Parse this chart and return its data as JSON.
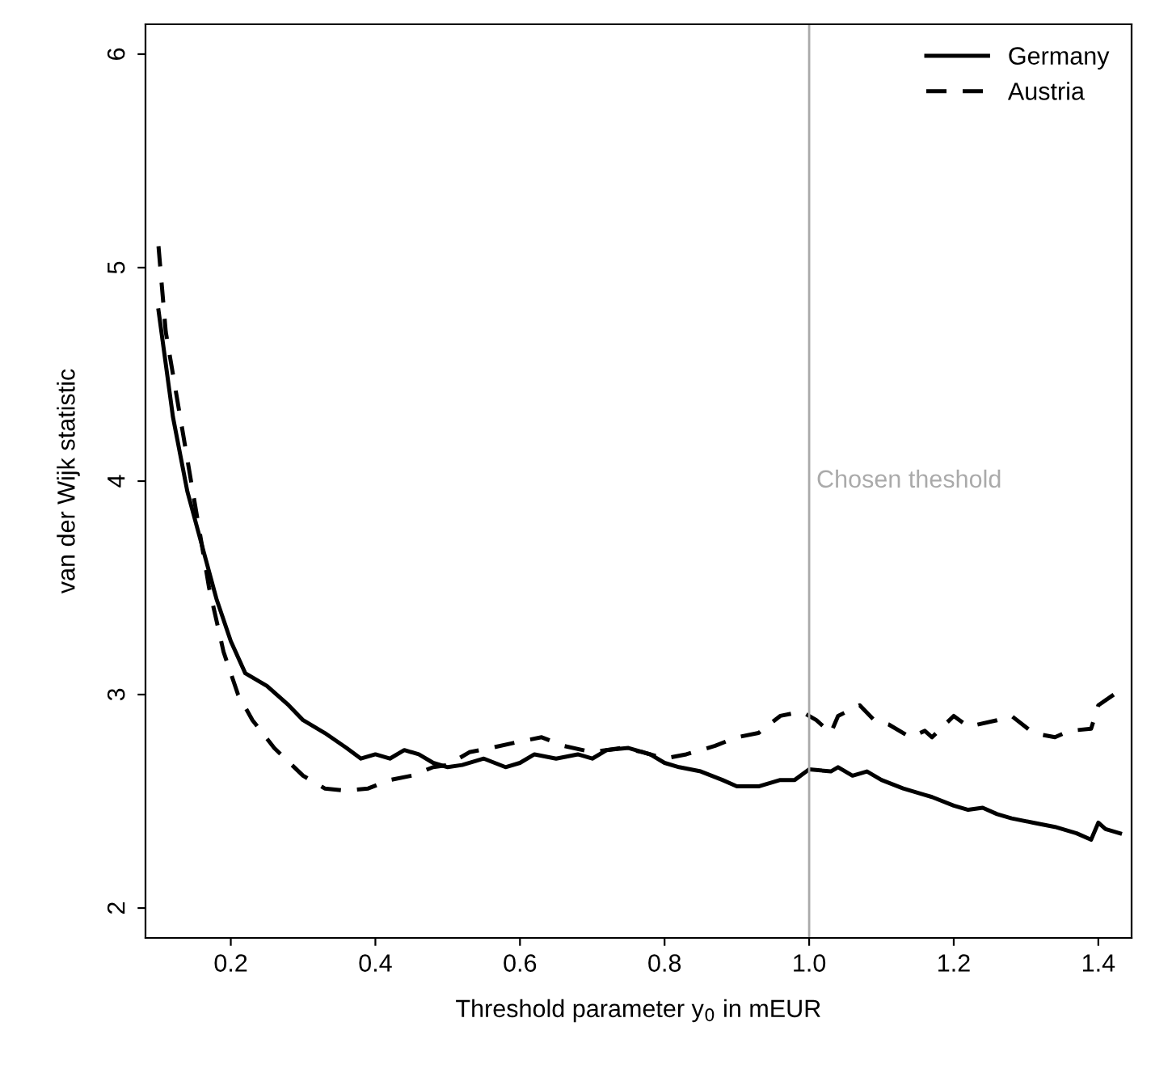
{
  "chart_data": {
    "type": "line",
    "xlabel": "Threshold parameter y$_{0}$ in mEUR",
    "ylabel": "van der Wijk statistic",
    "xlim": [
      0.082,
      1.446
    ],
    "ylim": [
      1.86,
      6.14
    ],
    "xticks": [
      0.2,
      0.4,
      0.6,
      0.8,
      {
        "value": 1,
        "label": "1.0"
      },
      1.2,
      1.4
    ],
    "yticks": [
      2,
      3,
      4,
      5,
      6
    ],
    "grid": false,
    "legend": "top right",
    "ref_lines": [
      {
        "axis": "x",
        "value": 1.0,
        "label": "Chosen theshold",
        "color": "#aaaaaa"
      }
    ],
    "series": [
      {
        "name": "Germany",
        "color": "#000000",
        "line_style": "solid",
        "x": [
          0.1,
          0.12,
          0.14,
          0.16,
          0.18,
          0.2,
          0.22,
          0.25,
          0.28,
          0.3,
          0.33,
          0.36,
          0.38,
          0.4,
          0.42,
          0.44,
          0.46,
          0.48,
          0.5,
          0.52,
          0.55,
          0.58,
          0.6,
          0.62,
          0.65,
          0.68,
          0.7,
          0.72,
          0.75,
          0.78,
          0.8,
          0.82,
          0.85,
          0.88,
          0.9,
          0.93,
          0.96,
          0.98,
          1.0,
          1.03,
          1.04,
          1.06,
          1.08,
          1.1,
          1.13,
          1.16,
          1.17,
          1.2,
          1.22,
          1.24,
          1.26,
          1.28,
          1.31,
          1.34,
          1.37,
          1.39,
          1.4,
          1.41,
          1.43
        ],
        "values": [
          4.8,
          4.3,
          3.95,
          3.7,
          3.45,
          3.25,
          3.1,
          3.04,
          2.95,
          2.88,
          2.82,
          2.75,
          2.7,
          2.72,
          2.7,
          2.74,
          2.72,
          2.68,
          2.66,
          2.67,
          2.7,
          2.66,
          2.68,
          2.72,
          2.7,
          2.72,
          2.7,
          2.74,
          2.75,
          2.72,
          2.68,
          2.66,
          2.64,
          2.6,
          2.57,
          2.57,
          2.6,
          2.6,
          2.65,
          2.64,
          2.66,
          2.62,
          2.64,
          2.6,
          2.56,
          2.53,
          2.52,
          2.48,
          2.46,
          2.47,
          2.44,
          2.42,
          2.4,
          2.38,
          2.35,
          2.32,
          2.4,
          2.37,
          2.35
        ]
      },
      {
        "name": "Austria",
        "color": "#000000",
        "line_style": "dashed",
        "x": [
          0.1,
          0.11,
          0.13,
          0.15,
          0.17,
          0.19,
          0.21,
          0.23,
          0.26,
          0.3,
          0.33,
          0.36,
          0.39,
          0.42,
          0.45,
          0.48,
          0.5,
          0.53,
          0.56,
          0.6,
          0.63,
          0.66,
          0.7,
          0.74,
          0.77,
          0.8,
          0.83,
          0.87,
          0.9,
          0.93,
          0.96,
          0.99,
          1.01,
          1.03,
          1.04,
          1.07,
          1.09,
          1.11,
          1.14,
          1.16,
          1.17,
          1.2,
          1.22,
          1.26,
          1.28,
          1.31,
          1.34,
          1.36,
          1.39,
          1.4,
          1.43
        ],
        "values": [
          5.1,
          4.7,
          4.3,
          3.9,
          3.5,
          3.2,
          3.0,
          2.88,
          2.75,
          2.62,
          2.56,
          2.55,
          2.56,
          2.6,
          2.62,
          2.66,
          2.67,
          2.73,
          2.75,
          2.78,
          2.8,
          2.76,
          2.73,
          2.75,
          2.73,
          2.7,
          2.72,
          2.76,
          2.8,
          2.82,
          2.9,
          2.92,
          2.88,
          2.82,
          2.9,
          2.95,
          2.88,
          2.86,
          2.8,
          2.83,
          2.8,
          2.9,
          2.85,
          2.88,
          2.9,
          2.82,
          2.8,
          2.83,
          2.84,
          2.95,
          3.02
        ]
      }
    ]
  }
}
